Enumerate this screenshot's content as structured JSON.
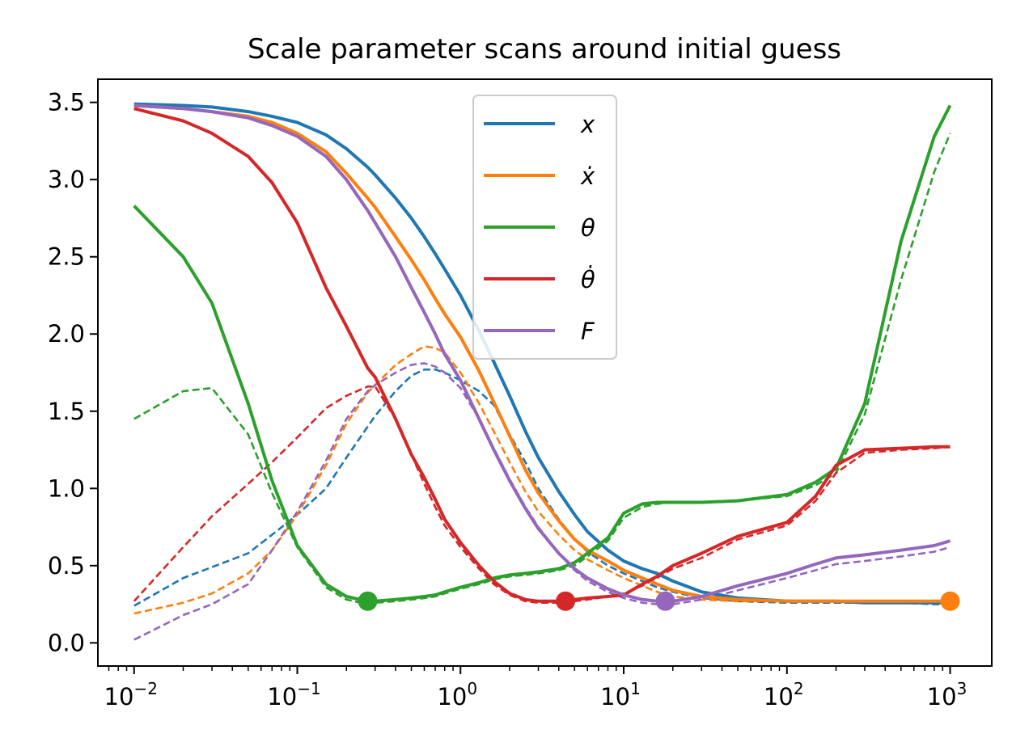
{
  "chart_data": {
    "type": "line",
    "title": "Scale parameter scans around initial guess",
    "xscale": "log",
    "xlim": [
      0.006,
      1800
    ],
    "ylim": [
      -0.15,
      3.65
    ],
    "x_ticks": [
      {
        "value": 0.01,
        "base": "10",
        "exp": "−2"
      },
      {
        "value": 0.1,
        "base": "10",
        "exp": "−1"
      },
      {
        "value": 1,
        "base": "10",
        "exp": "0"
      },
      {
        "value": 10,
        "base": "10",
        "exp": "1"
      },
      {
        "value": 100,
        "base": "10",
        "exp": "2"
      },
      {
        "value": 1000,
        "base": "10",
        "exp": "3"
      }
    ],
    "y_ticks": [
      {
        "value": 0.0,
        "label": "0.0"
      },
      {
        "value": 0.5,
        "label": "0.5"
      },
      {
        "value": 1.0,
        "label": "1.0"
      },
      {
        "value": 1.5,
        "label": "1.5"
      },
      {
        "value": 2.0,
        "label": "2.0"
      },
      {
        "value": 2.5,
        "label": "2.5"
      },
      {
        "value": 3.0,
        "label": "3.0"
      },
      {
        "value": 3.5,
        "label": "3.5"
      }
    ],
    "grid": false,
    "legend_position": "upper-center",
    "x": [
      0.01,
      0.02,
      0.03,
      0.05,
      0.07,
      0.1,
      0.15,
      0.2,
      0.27,
      0.3,
      0.4,
      0.5,
      0.6,
      0.7,
      0.8,
      1,
      1.3,
      1.6,
      2,
      2.5,
      3,
      4,
      5,
      6,
      8,
      10,
      13,
      16,
      20,
      30,
      50,
      100,
      150,
      200,
      300,
      500,
      800,
      1000
    ],
    "series": [
      {
        "name": "x",
        "color": "#1f77b4",
        "solid": [
          3.49,
          3.48,
          3.47,
          3.44,
          3.41,
          3.37,
          3.29,
          3.2,
          3.08,
          3.03,
          2.88,
          2.75,
          2.63,
          2.52,
          2.42,
          2.25,
          2.02,
          1.82,
          1.6,
          1.37,
          1.2,
          0.98,
          0.83,
          0.72,
          0.6,
          0.53,
          0.48,
          0.45,
          0.4,
          0.33,
          0.29,
          0.27,
          0.27,
          0.27,
          0.26,
          0.26,
          0.26,
          0.26
        ],
        "dashed": [
          0.24,
          0.42,
          0.49,
          0.58,
          0.7,
          0.83,
          1.0,
          1.2,
          1.4,
          1.47,
          1.63,
          1.73,
          1.77,
          1.77,
          1.75,
          1.7,
          1.63,
          1.54,
          1.35,
          1.17,
          1.0,
          0.8,
          0.67,
          0.59,
          0.5,
          0.45,
          0.4,
          0.36,
          0.33,
          0.29,
          0.27,
          0.26,
          0.26,
          0.26,
          0.26,
          0.26,
          0.25,
          0.25
        ],
        "marker": null
      },
      {
        "name": "ẋ",
        "color": "#ff7f0e",
        "solid": [
          3.48,
          3.46,
          3.44,
          3.41,
          3.37,
          3.3,
          3.18,
          3.04,
          2.88,
          2.82,
          2.63,
          2.48,
          2.35,
          2.23,
          2.13,
          1.98,
          1.76,
          1.56,
          1.34,
          1.12,
          0.97,
          0.79,
          0.67,
          0.6,
          0.53,
          0.47,
          0.42,
          0.38,
          0.34,
          0.3,
          0.28,
          0.27,
          0.27,
          0.27,
          0.27,
          0.27,
          0.27,
          0.27
        ],
        "dashed": [
          0.19,
          0.26,
          0.32,
          0.45,
          0.6,
          0.83,
          1.15,
          1.42,
          1.62,
          1.67,
          1.8,
          1.87,
          1.92,
          1.91,
          1.88,
          1.75,
          1.55,
          1.37,
          1.17,
          0.98,
          0.85,
          0.7,
          0.6,
          0.54,
          0.47,
          0.42,
          0.37,
          0.33,
          0.3,
          0.28,
          0.27,
          0.27,
          0.27,
          0.27,
          0.27,
          0.27,
          0.27,
          0.27
        ],
        "marker": {
          "x": 1000,
          "y": 0.27
        }
      },
      {
        "name": "θ",
        "color": "#2ca02c",
        "solid": [
          2.83,
          2.5,
          2.2,
          1.55,
          1.05,
          0.63,
          0.38,
          0.3,
          0.27,
          0.27,
          0.28,
          0.29,
          0.3,
          0.31,
          0.33,
          0.36,
          0.39,
          0.42,
          0.44,
          0.45,
          0.46,
          0.48,
          0.52,
          0.58,
          0.68,
          0.84,
          0.9,
          0.91,
          0.91,
          0.91,
          0.92,
          0.96,
          1.04,
          1.13,
          1.55,
          2.6,
          3.28,
          3.48
        ],
        "dashed": [
          1.45,
          1.63,
          1.65,
          1.35,
          0.97,
          0.62,
          0.36,
          0.28,
          0.25,
          0.26,
          0.27,
          0.28,
          0.29,
          0.3,
          0.32,
          0.35,
          0.38,
          0.41,
          0.43,
          0.44,
          0.45,
          0.47,
          0.5,
          0.56,
          0.66,
          0.81,
          0.88,
          0.9,
          0.91,
          0.91,
          0.92,
          0.95,
          1.02,
          1.1,
          1.48,
          2.35,
          3.05,
          3.3
        ],
        "marker": {
          "x": 0.27,
          "y": 0.27
        }
      },
      {
        "name": "θ̇",
        "color": "#d62728",
        "solid": [
          3.46,
          3.38,
          3.3,
          3.15,
          2.98,
          2.72,
          2.3,
          2.05,
          1.78,
          1.72,
          1.45,
          1.22,
          1.07,
          0.93,
          0.8,
          0.65,
          0.5,
          0.4,
          0.32,
          0.28,
          0.27,
          0.27,
          0.28,
          0.29,
          0.3,
          0.31,
          0.38,
          0.43,
          0.5,
          0.58,
          0.69,
          0.78,
          0.95,
          1.15,
          1.25,
          1.26,
          1.27,
          1.27
        ],
        "dashed": [
          0.27,
          0.62,
          0.82,
          1.03,
          1.17,
          1.33,
          1.52,
          1.6,
          1.66,
          1.66,
          1.45,
          1.22,
          1.03,
          0.88,
          0.76,
          0.62,
          0.48,
          0.38,
          0.31,
          0.27,
          0.26,
          0.26,
          0.27,
          0.28,
          0.3,
          0.32,
          0.37,
          0.42,
          0.48,
          0.55,
          0.67,
          0.76,
          0.92,
          1.1,
          1.23,
          1.25,
          1.26,
          1.27
        ],
        "marker": {
          "x": 4.4,
          "y": 0.27
        }
      },
      {
        "name": "F",
        "color": "#9467bd",
        "solid": [
          3.48,
          3.46,
          3.44,
          3.4,
          3.35,
          3.28,
          3.15,
          3.0,
          2.8,
          2.72,
          2.5,
          2.3,
          2.14,
          2.0,
          1.87,
          1.7,
          1.45,
          1.25,
          1.05,
          0.87,
          0.74,
          0.58,
          0.48,
          0.42,
          0.35,
          0.31,
          0.28,
          0.27,
          0.27,
          0.3,
          0.37,
          0.45,
          0.51,
          0.55,
          0.57,
          0.6,
          0.63,
          0.66
        ],
        "dashed": [
          0.02,
          0.18,
          0.25,
          0.38,
          0.6,
          0.85,
          1.18,
          1.45,
          1.63,
          1.67,
          1.75,
          1.8,
          1.81,
          1.79,
          1.75,
          1.65,
          1.45,
          1.26,
          1.06,
          0.88,
          0.75,
          0.58,
          0.47,
          0.4,
          0.33,
          0.29,
          0.26,
          0.25,
          0.25,
          0.28,
          0.34,
          0.42,
          0.47,
          0.51,
          0.53,
          0.56,
          0.59,
          0.62
        ],
        "marker": {
          "x": 18,
          "y": 0.27
        }
      }
    ]
  }
}
